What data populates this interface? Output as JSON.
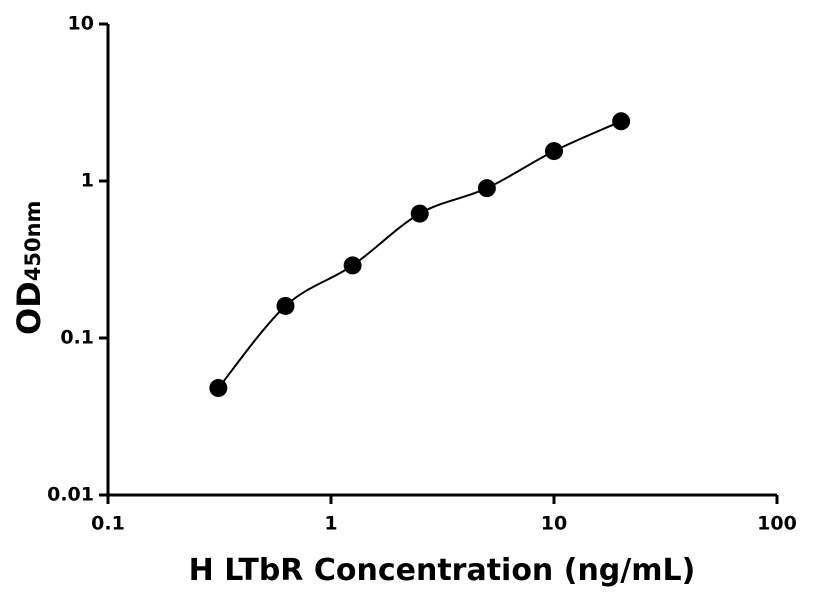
{
  "chart_data": {
    "type": "scatter",
    "x_label": "H LTbR Concentration (ng/mL)",
    "y_label": "OD",
    "y_label_subscript": "450nm",
    "x": [
      0.3125,
      0.625,
      1.25,
      2.5,
      5,
      10,
      20
    ],
    "series": [
      {
        "color": "#000000",
        "values": [
          0.048,
          0.16,
          0.29,
          0.62,
          0.9,
          1.55,
          2.4
        ]
      }
    ],
    "x_scale": "log",
    "y_scale": "log",
    "xlim": [
      0.1,
      100
    ],
    "xticks": [
      0.1,
      1,
      10,
      100
    ],
    "ylim": [
      0.01,
      10
    ],
    "yticks": [
      0.01,
      0.1,
      1,
      10
    ]
  }
}
